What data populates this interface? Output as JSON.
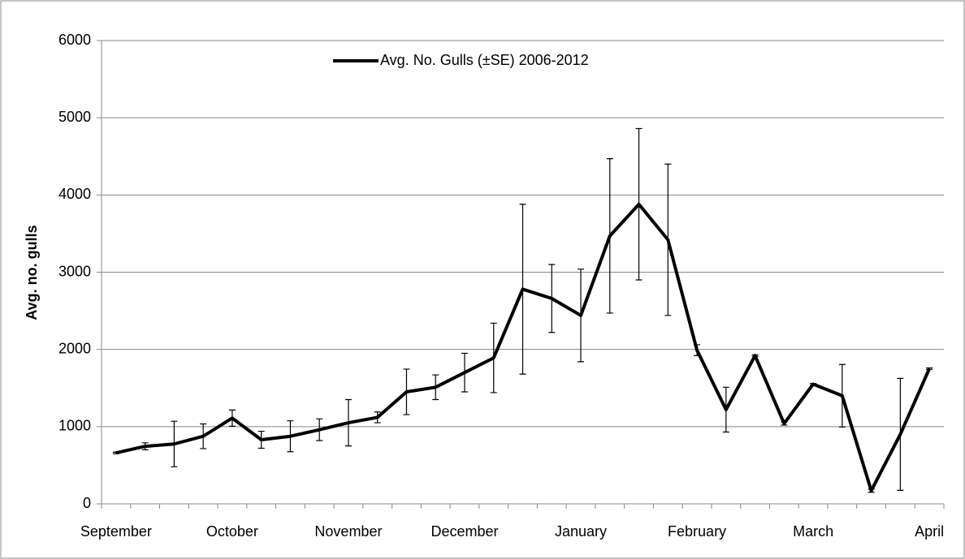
{
  "chart_data": {
    "type": "line",
    "ylabel": "Avg. no. gulls",
    "categories": [
      "September",
      null,
      null,
      null,
      "October",
      null,
      null,
      null,
      "November",
      null,
      null,
      null,
      "December",
      null,
      null,
      null,
      "January",
      null,
      null,
      null,
      "February",
      null,
      null,
      null,
      "March",
      null,
      null,
      null,
      "April"
    ],
    "series": [
      {
        "name": "Avg. No. Gulls (±SE) 2006-2012",
        "color": "#000000",
        "values": [
          660,
          745,
          775,
          875,
          1110,
          830,
          875,
          960,
          1050,
          1120,
          1450,
          1510,
          1700,
          1890,
          2780,
          2660,
          2440,
          3470,
          3880,
          3420,
          1990,
          1220,
          1920,
          1040,
          1550,
          1400,
          170,
          900,
          1750
        ],
        "errors": [
          10,
          45,
          295,
          160,
          105,
          110,
          200,
          140,
          300,
          70,
          295,
          160,
          250,
          450,
          1100,
          440,
          600,
          1000,
          980,
          980,
          70,
          290,
          10,
          20,
          10,
          405,
          20,
          725,
          10
        ]
      }
    ],
    "ylim": [
      0,
      6000
    ],
    "yticks": [
      0,
      1000,
      2000,
      3000,
      4000,
      5000,
      6000
    ],
    "grid": true,
    "legend": "top"
  }
}
